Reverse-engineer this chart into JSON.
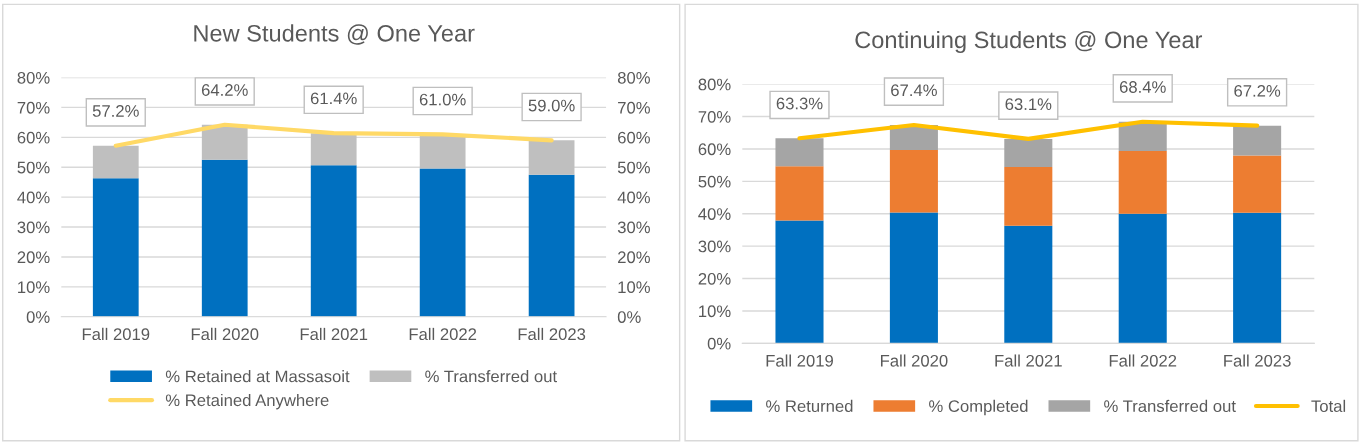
{
  "chart_data": [
    {
      "type": "bar",
      "title": "New Students @ One Year",
      "stacked": true,
      "categories": [
        "Fall 2019",
        "Fall 2020",
        "Fall 2021",
        "Fall 2022",
        "Fall 2023"
      ],
      "series": [
        {
          "name": "% Retained at Massasoit",
          "color": "#0070c0",
          "values": [
            46.3,
            52.5,
            50.7,
            49.6,
            47.5
          ]
        },
        {
          "name": "% Transferred out",
          "color": "#bfbfbf",
          "values": [
            10.9,
            11.7,
            10.7,
            11.4,
            11.5
          ]
        },
        {
          "name": "% Retained Anywhere",
          "type": "line",
          "color": "#ffd966",
          "values": [
            57.2,
            64.2,
            61.4,
            61.0,
            59.0
          ],
          "value_labels": [
            "57.2%",
            "64.2%",
            "61.4%",
            "61.0%",
            "59.0%"
          ]
        }
      ],
      "ylim": [
        0,
        80
      ],
      "yticks": [
        {
          "value": 0,
          "label": "0%"
        },
        {
          "value": 10,
          "label": "10%"
        },
        {
          "value": 20,
          "label": "20%"
        },
        {
          "value": 30,
          "label": "30%"
        },
        {
          "value": 40,
          "label": "40%"
        },
        {
          "value": 50,
          "label": "50%"
        },
        {
          "value": 60,
          "label": "60%"
        },
        {
          "value": 70,
          "label": "70%"
        },
        {
          "value": 80,
          "label": "80%"
        }
      ],
      "y2lim": [
        0,
        80
      ],
      "y2ticks": [
        {
          "value": 0,
          "label": "0%"
        },
        {
          "value": 10,
          "label": "10%"
        },
        {
          "value": 20,
          "label": "20%"
        },
        {
          "value": 30,
          "label": "30%"
        },
        {
          "value": 40,
          "label": "40%"
        },
        {
          "value": 50,
          "label": "50%"
        },
        {
          "value": 60,
          "label": "60%"
        },
        {
          "value": 70,
          "label": "70%"
        },
        {
          "value": 80,
          "label": "80%"
        }
      ],
      "grid": "y",
      "legend": "bottom"
    },
    {
      "type": "bar",
      "title": "Continuing Students @ One Year",
      "stacked": true,
      "categories": [
        "Fall 2019",
        "Fall 2020",
        "Fall 2021",
        "Fall 2022",
        "Fall 2023"
      ],
      "series": [
        {
          "name": "% Returned",
          "color": "#0070c0",
          "values": [
            37.9,
            40.4,
            36.3,
            40.0,
            40.3
          ]
        },
        {
          "name": "% Completed",
          "color": "#ed7d31",
          "values": [
            16.8,
            19.3,
            18.1,
            19.4,
            17.7
          ]
        },
        {
          "name": "% Transferred out",
          "color": "#a5a5a5",
          "values": [
            8.6,
            7.7,
            8.7,
            9.0,
            9.2
          ]
        },
        {
          "name": "Total",
          "type": "line",
          "color": "#ffc000",
          "values": [
            63.3,
            67.4,
            63.1,
            68.4,
            67.2
          ],
          "value_labels": [
            "63.3%",
            "67.4%",
            "63.1%",
            "68.4%",
            "67.2%"
          ]
        }
      ],
      "ylim": [
        0,
        80
      ],
      "yticks": [
        {
          "value": 0,
          "label": "0%"
        },
        {
          "value": 10,
          "label": "10%"
        },
        {
          "value": 20,
          "label": "20%"
        },
        {
          "value": 30,
          "label": "30%"
        },
        {
          "value": 40,
          "label": "40%"
        },
        {
          "value": 50,
          "label": "50%"
        },
        {
          "value": 60,
          "label": "60%"
        },
        {
          "value": 70,
          "label": "70%"
        },
        {
          "value": 80,
          "label": "80%"
        }
      ],
      "grid": "y",
      "legend": "bottom"
    }
  ]
}
